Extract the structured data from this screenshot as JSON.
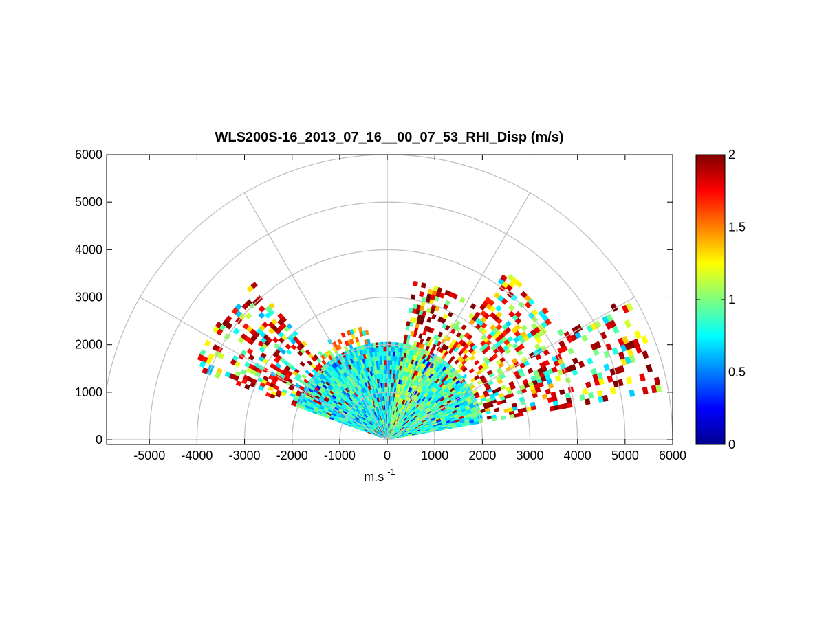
{
  "chart_data": {
    "type": "heatmap",
    "subtype": "polar RHI scan (range-height indicator)",
    "title": "WLS200S-16_2013_07_16__00_07_53_RHI_Disp (m/s)",
    "xlabel_base": "m.s",
    "xlabel_exponent": "-1",
    "ylabel": "",
    "xlim": [
      -5900,
      6000
    ],
    "ylim": [
      -100,
      6000
    ],
    "xticks": [
      -5000,
      -4000,
      -3000,
      -2000,
      -1000,
      0,
      1000,
      2000,
      3000,
      4000,
      5000,
      6000
    ],
    "yticks": [
      0,
      1000,
      2000,
      3000,
      4000,
      5000,
      6000
    ],
    "polar_grid": {
      "range_rings": [
        1000,
        2000,
        3000,
        4000,
        5000,
        6000
      ],
      "spokes_deg": [
        0,
        30,
        60,
        90,
        120,
        150,
        180
      ]
    },
    "colorbar": {
      "min": 0,
      "max": 2,
      "ticks": [
        0,
        0.5,
        1,
        1.5,
        2
      ],
      "colormap": "jet"
    },
    "colormap_stops": [
      "#00008f",
      "#0000ff",
      "#00ffff",
      "#ffff00",
      "#ff0000",
      "#800000"
    ],
    "grid_color": "#c0c0c0",
    "scan": {
      "elevation_min_deg": 10,
      "elevation_max_deg": 160,
      "near_range_dense_m": 2000,
      "max_range_m": 6000
    },
    "sectors": [
      {
        "from_deg": 10,
        "to_deg": 30,
        "range_max_m": 5800,
        "dispersion_typical": 0.85,
        "far_dispersion": 1.9
      },
      {
        "from_deg": 30,
        "to_deg": 55,
        "range_max_m": 4300,
        "dispersion_typical": 0.9,
        "far_dispersion": 1.8
      },
      {
        "from_deg": 55,
        "to_deg": 80,
        "range_max_m": 3300,
        "dispersion_typical": 1.0,
        "far_dispersion": 1.9
      },
      {
        "from_deg": 80,
        "to_deg": 100,
        "range_max_m": 2050,
        "dispersion_typical": 0.75,
        "far_dispersion": 1.8
      },
      {
        "from_deg": 100,
        "to_deg": 130,
        "range_max_m": 2400,
        "dispersion_typical": 0.8,
        "far_dispersion": 1.6
      },
      {
        "from_deg": 130,
        "to_deg": 160,
        "range_max_m": 4300,
        "dispersion_typical": 0.8,
        "far_dispersion": 1.85
      }
    ]
  }
}
